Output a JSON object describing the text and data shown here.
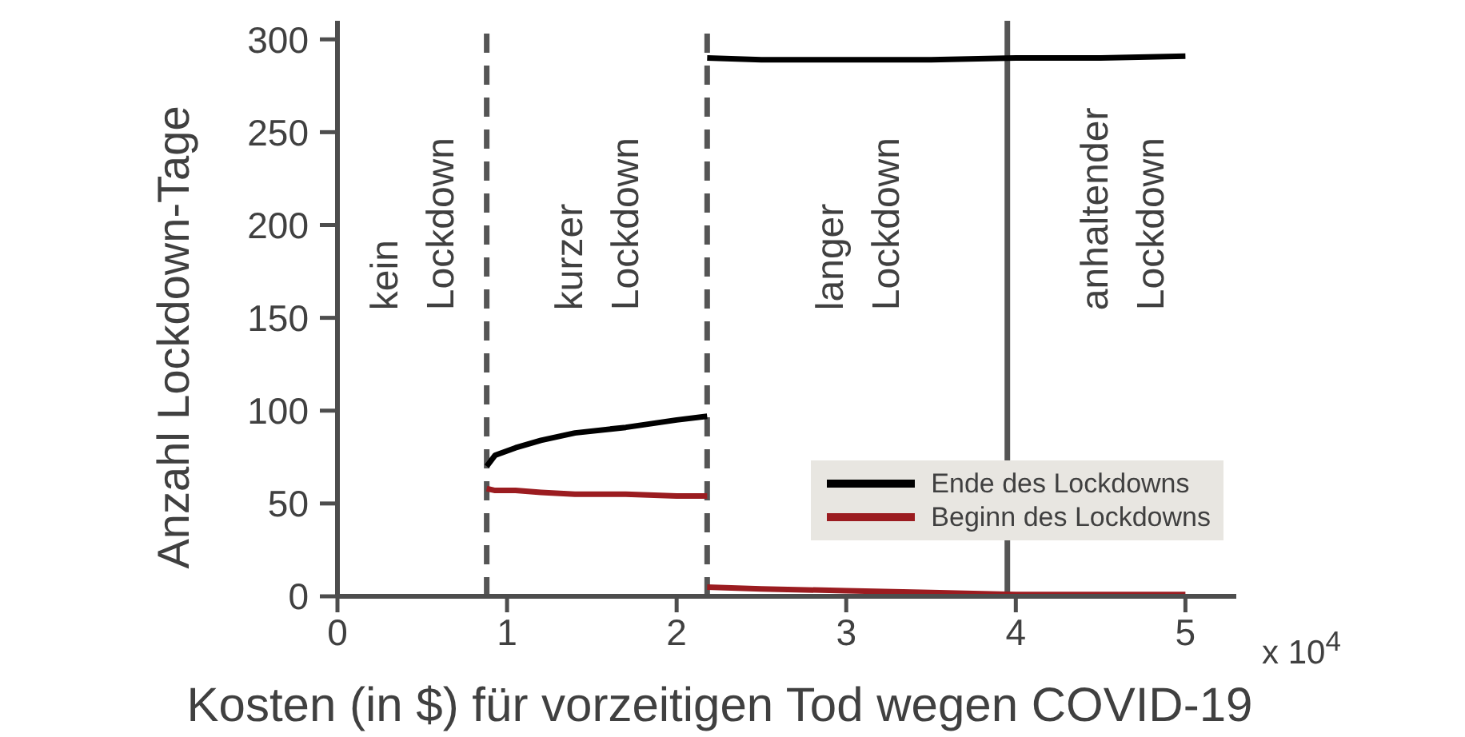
{
  "chart_data": {
    "type": "line",
    "xlabel": "Kosten (in $) für vorzeitigen Tod wegen COVID-19",
    "ylabel": "Anzahl Lockdown-Tage",
    "series": [
      {
        "name": "Ende des Lockdowns",
        "color": "#000000",
        "x": [
          0.88,
          0.93,
          1.05,
          1.2,
          1.4,
          1.7,
          2.0,
          2.18
        ],
        "values": [
          70,
          76,
          80,
          84,
          88,
          91,
          95,
          97
        ]
      },
      {
        "name": "Beginn des Lockdowns",
        "color": "#9b1c20",
        "x": [
          0.88,
          0.93,
          1.05,
          1.2,
          1.4,
          1.7,
          2.0,
          2.18
        ],
        "values": [
          58,
          57,
          57,
          56,
          55,
          55,
          54,
          54
        ]
      },
      {
        "color": "#000000",
        "x": [
          2.18,
          2.5,
          3,
          3.5,
          4,
          4.5,
          5
        ],
        "values": [
          290,
          289,
          289,
          289,
          290,
          290,
          291
        ]
      },
      {
        "color": "#9b1c20",
        "x": [
          2.18,
          2.5,
          3,
          3.5,
          4,
          4.5,
          5
        ],
        "values": [
          5,
          4,
          3,
          2,
          1,
          1,
          1
        ]
      }
    ],
    "xlim": [
      0,
      5.3
    ],
    "xticks": [
      0,
      1,
      2,
      3,
      4,
      5
    ],
    "ylim": [
      0,
      310
    ],
    "yticks": [
      0,
      50,
      100,
      150,
      200,
      250,
      300
    ],
    "ref_lines": [
      {
        "axis": "x",
        "value": 0.88,
        "color": "#555555",
        "line_style": "dashed"
      },
      {
        "axis": "x",
        "value": 2.18,
        "color": "#555555",
        "line_style": "dashed"
      },
      {
        "axis": "x",
        "value": 3.95,
        "color": "#555555",
        "line_style": "solid"
      }
    ],
    "annotations": [
      "kein Lockdown",
      "kurzer Lockdown",
      "langer Lockdown",
      "anhaltender Lockdown",
      "x 10$^{4}$"
    ],
    "legend": "bottom right"
  }
}
